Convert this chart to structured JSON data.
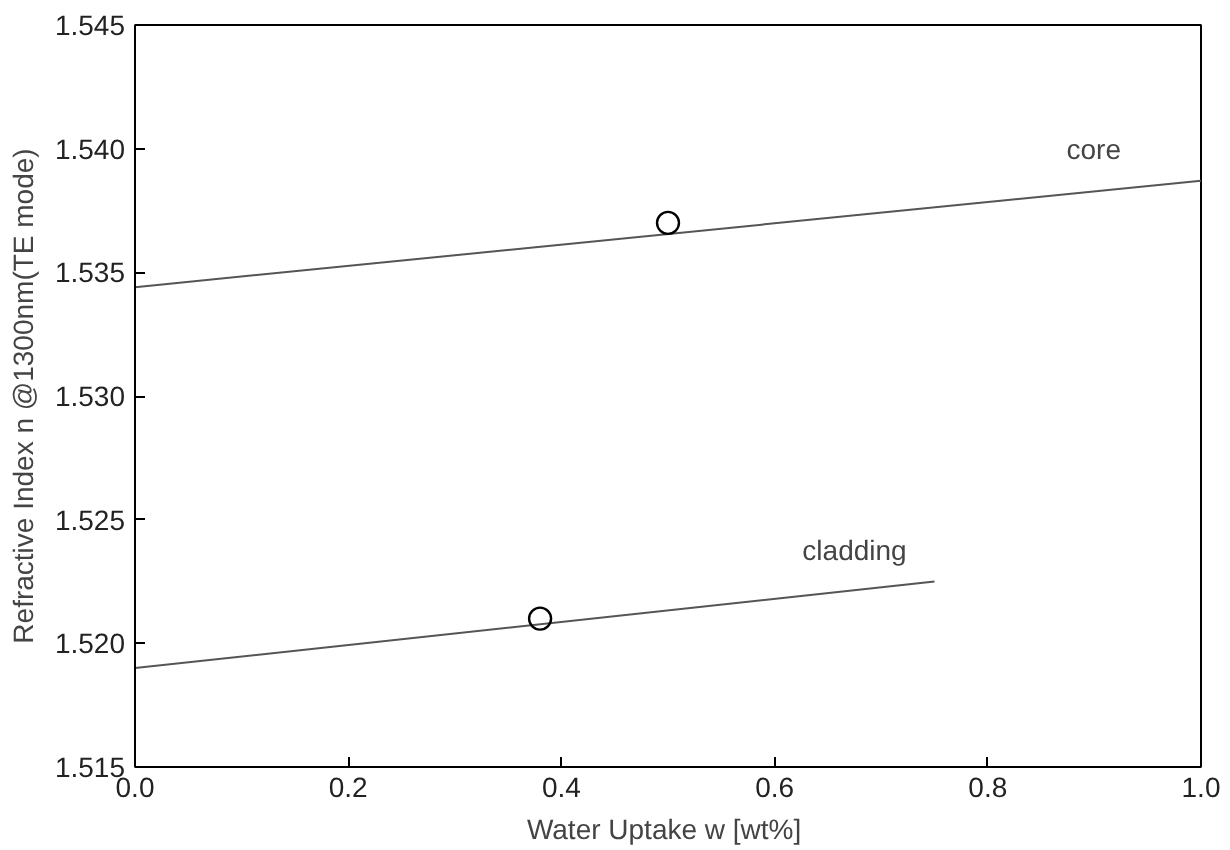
{
  "chart_data": {
    "type": "line",
    "xlabel": "Water Uptake  w [wt%]",
    "ylabel": "Refractive Index n @1300nm(TE mode)",
    "xlim": [
      0.0,
      1.0
    ],
    "ylim": [
      1.515,
      1.545
    ],
    "xticks": [
      {
        "value": 0,
        "label": "0.0"
      },
      0.2,
      0.4,
      0.6,
      0.8,
      {
        "value": 1,
        "label": "1.0"
      }
    ],
    "yticks": [
      1.515,
      {
        "value": 1.52,
        "label": "1.520"
      },
      1.525,
      {
        "value": 1.53,
        "label": "1.530"
      },
      1.535,
      {
        "value": 1.54,
        "label": "1.540"
      },
      1.545
    ],
    "grid": false,
    "series": [
      {
        "name": "core",
        "color": "#555555",
        "x": [
          0.0,
          1.0
        ],
        "values": [
          1.5344,
          1.5387
        ]
      },
      {
        "name": "cladding",
        "color": "#555555",
        "x": [
          0.0,
          0.75
        ],
        "values": [
          1.519,
          1.5225
        ]
      },
      {
        "type": "scatter",
        "marker": "circle",
        "color": "#000000",
        "x": [
          0.5
        ],
        "values": [
          1.537
        ]
      },
      {
        "type": "scatter",
        "marker": "circle",
        "color": "#000000",
        "x": [
          0.38
        ],
        "values": [
          1.521
        ]
      }
    ]
  }
}
